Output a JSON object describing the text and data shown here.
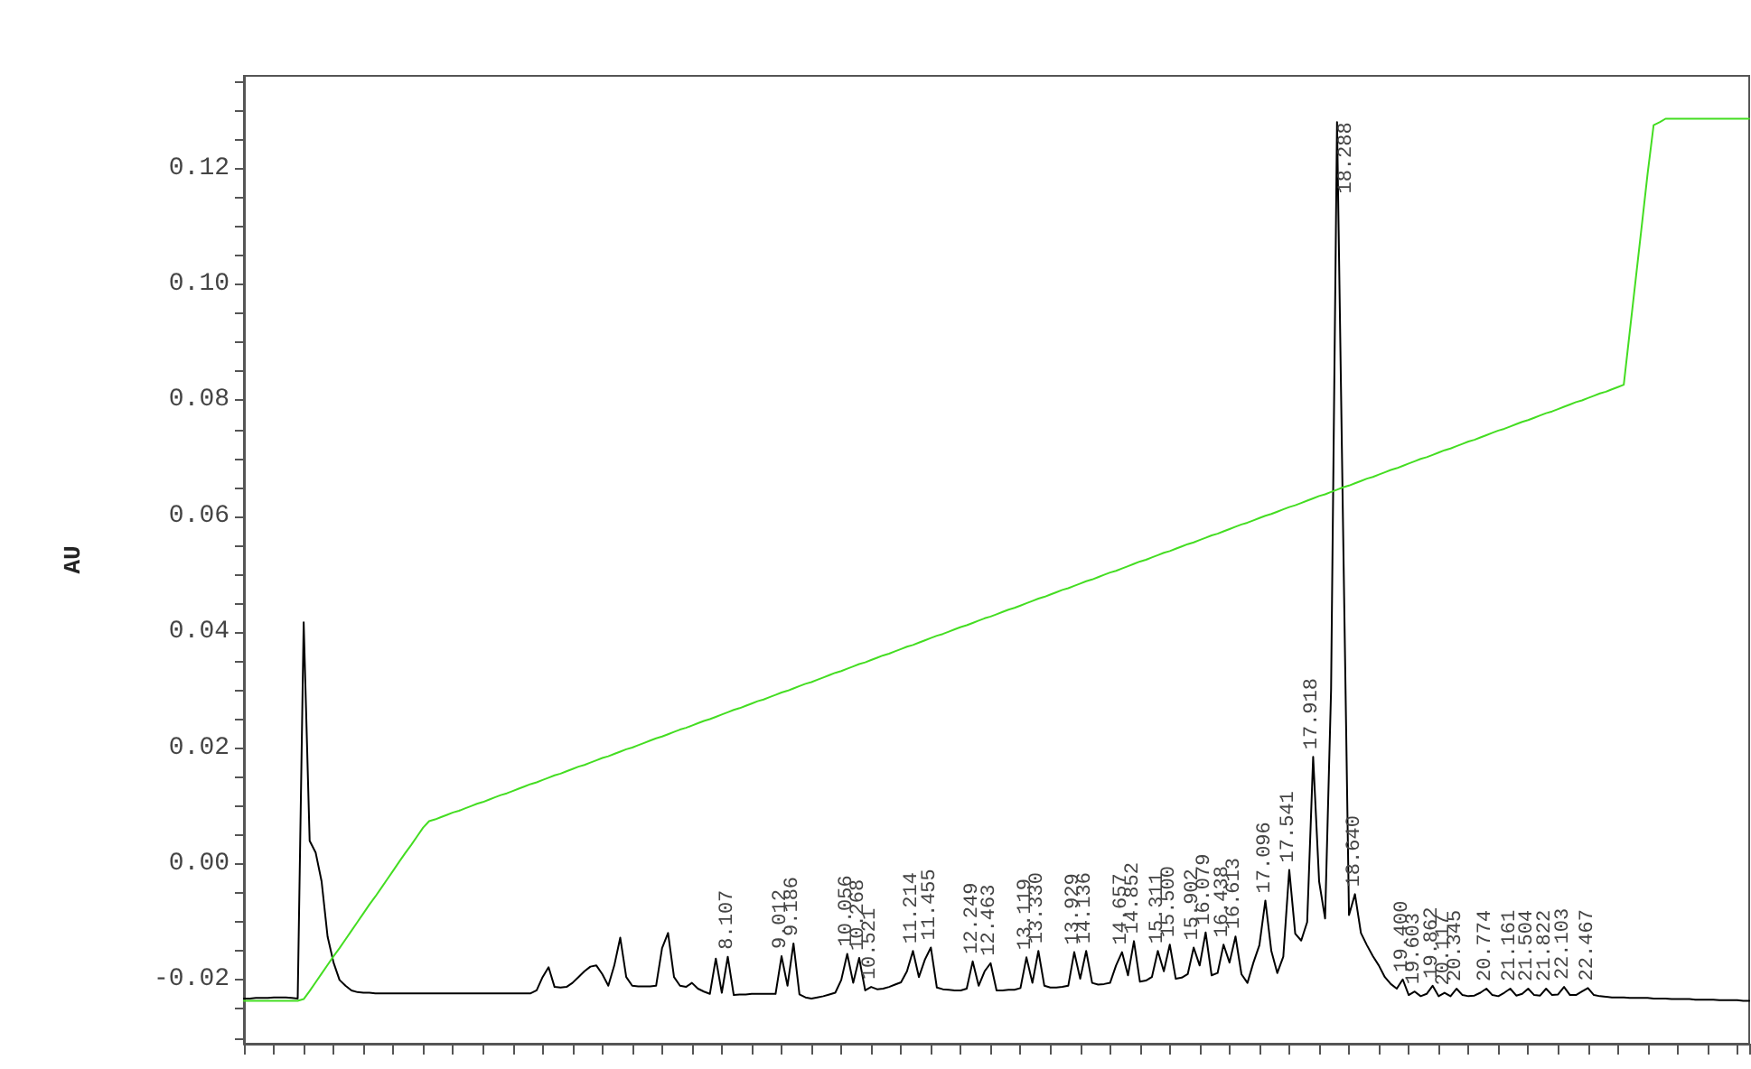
{
  "chart_data": {
    "type": "line",
    "ylabel": "AU",
    "categories": [
      null,
      null,
      null,
      null,
      null,
      null,
      null,
      null,
      null,
      null,
      null,
      null,
      null,
      null,
      null,
      null,
      null,
      null,
      null,
      null,
      null,
      null,
      null,
      null,
      null,
      null,
      null,
      null,
      null,
      null,
      null,
      null,
      null,
      null,
      null,
      null,
      null,
      null,
      null,
      null,
      null,
      null,
      null,
      null,
      null,
      null,
      null,
      null,
      null,
      null,
      null,
      null,
      null,
      null,
      null,
      null,
      null,
      null,
      null,
      null,
      null,
      null,
      null,
      null,
      null,
      null,
      null,
      null,
      null,
      null,
      null,
      null,
      null,
      null,
      null,
      null,
      null,
      null,
      null,
      null,
      null,
      null,
      null,
      null,
      null,
      null,
      null,
      null,
      null,
      null,
      null,
      null,
      null,
      null,
      null,
      null,
      null,
      null,
      null,
      null,
      null,
      null,
      null,
      null,
      null,
      null,
      null,
      null,
      null,
      null,
      null,
      null,
      null,
      null,
      null,
      null,
      null,
      null,
      null,
      null,
      null,
      null,
      null,
      null,
      null,
      null,
      null,
      null,
      null,
      null,
      null,
      null,
      null,
      null,
      null,
      null,
      null,
      null,
      null,
      null,
      null,
      null,
      null,
      null,
      null,
      null,
      null,
      null,
      null,
      null,
      null,
      null,
      null,
      null,
      null,
      null,
      null,
      null,
      null,
      null,
      null,
      null,
      null,
      null,
      null,
      null,
      null,
      null,
      null,
      null,
      null,
      null,
      null,
      null,
      null,
      null,
      null,
      null,
      null,
      null,
      null,
      null,
      null,
      null,
      null,
      null,
      null,
      null,
      null,
      null,
      null,
      null,
      null,
      null,
      null,
      null,
      null,
      null,
      null,
      null,
      null,
      null,
      null,
      null,
      null,
      null,
      null,
      null,
      null,
      null,
      null,
      null,
      null,
      null,
      null,
      null,
      null,
      null,
      null,
      null,
      null,
      null,
      null,
      null,
      null,
      null,
      null,
      null,
      null,
      null,
      null,
      null,
      null,
      null,
      null,
      null,
      null,
      null,
      null,
      null,
      null,
      null,
      null,
      null,
      null,
      null,
      null,
      null,
      null,
      null,
      null,
      null,
      null
    ],
    "ylim": [
      -0.031,
      0.136
    ],
    "yticks": [
      {
        "value": -0.03,
        "label": null
      },
      {
        "value": -0.025,
        "label": null
      },
      -0.02,
      {
        "value": -0.015,
        "label": null
      },
      {
        "value": -0.01,
        "label": null
      },
      {
        "value": -0.005,
        "label": null
      },
      {
        "value": 0,
        "label": "0.00"
      },
      {
        "value": 0.005,
        "label": null
      },
      {
        "value": 0.01,
        "label": null
      },
      {
        "value": 0.015,
        "label": null
      },
      0.02,
      {
        "value": 0.025,
        "label": null
      },
      {
        "value": 0.03,
        "label": null
      },
      {
        "value": 0.035,
        "label": null
      },
      0.04,
      {
        "value": 0.045,
        "label": null
      },
      {
        "value": 0.05,
        "label": null
      },
      {
        "value": 0.055,
        "label": null
      },
      0.06,
      {
        "value": 0.065,
        "label": null
      },
      {
        "value": 0.07,
        "label": null
      },
      {
        "value": 0.075,
        "label": null
      },
      0.08,
      {
        "value": 0.085,
        "label": null
      },
      {
        "value": 0.09,
        "label": null
      },
      {
        "value": 0.095,
        "label": null
      },
      {
        "value": 0.1,
        "label": "0.10"
      },
      {
        "value": 0.105,
        "label": null
      },
      {
        "value": 0.11,
        "label": null
      },
      {
        "value": 0.115,
        "label": null
      },
      0.12,
      {
        "value": 0.125,
        "label": null
      },
      {
        "value": 0.13,
        "label": null
      },
      {
        "value": 0.135,
        "label": null
      }
    ],
    "tick_labels": "y",
    "grid": false,
    "marker": "none",
    "line_style": "solid",
    "annotations": [
      {
        "text": "8.107",
        "y": -0.016
      },
      {
        "text": "9.012",
        "y": -0.0159
      },
      {
        "text": "9.186",
        "y": -0.0137
      },
      {
        "text": "10.056",
        "y": -0.0155
      },
      {
        "text": "10.268",
        "y": -0.0162
      },
      {
        "text": "10.521",
        "y": -0.0212
      },
      {
        "text": "11.214",
        "y": -0.015
      },
      {
        "text": "11.455",
        "y": -0.0144
      },
      {
        "text": "12.249",
        "y": -0.0168
      },
      {
        "text": "12.463",
        "y": -0.0171
      },
      {
        "text": "13.119",
        "y": -0.0161
      },
      {
        "text": "13.330",
        "y": -0.015
      },
      {
        "text": "13.929",
        "y": -0.0152
      },
      {
        "text": "14.136",
        "y": -0.015
      },
      {
        "text": "14.657",
        "y": -0.0152
      },
      {
        "text": "14.852",
        "y": -0.0133
      },
      {
        "text": "15.311",
        "y": -0.015
      },
      {
        "text": "15.500",
        "y": -0.0139
      },
      {
        "text": "15.902",
        "y": -0.0144
      },
      {
        "text": "16.079",
        "y": -0.0118
      },
      {
        "text": "16.438",
        "y": -0.0139
      },
      {
        "text": "16.613",
        "y": -0.0125
      },
      {
        "text": "17.096",
        "y": -0.0063
      },
      {
        "text": "17.541",
        "y": -0.001
      },
      {
        "text": "17.918",
        "y": 0.0185
      },
      {
        "text": "18.288",
        "y": 0.128
      },
      {
        "text": "18.640",
        "y": -0.0052
      },
      {
        "text": "19.400",
        "y": -0.0199
      },
      {
        "text": "19.603",
        "y": -0.022
      },
      {
        "text": "19.862",
        "y": -0.021
      },
      {
        "text": "20.117",
        "y": -0.0222
      },
      {
        "text": "20.345",
        "y": -0.0215
      },
      {
        "text": "20.774",
        "y": -0.0215
      },
      {
        "text": "21.161",
        "y": -0.0215
      },
      {
        "text": "21.504",
        "y": -0.0215
      },
      {
        "text": "21.822",
        "y": -0.0215
      },
      {
        "text": "22.103",
        "y": -0.0212
      },
      {
        "text": "22.467",
        "y": -0.0214
      }
    ],
    "series": [
      {
        "color": "#000000",
        "values": [
          -0.0232,
          -0.0232,
          -0.0231,
          -0.0231,
          -0.0231,
          -0.023,
          -0.023,
          -0.023,
          -0.0231,
          -0.0232,
          0.0417,
          0.004,
          0.002,
          -0.003,
          -0.0125,
          -0.017,
          -0.02,
          -0.021,
          -0.0218,
          -0.0221,
          -0.0222,
          -0.0222,
          -0.0223,
          -0.0223,
          -0.0223,
          -0.0223,
          -0.0223,
          -0.0223,
          -0.0223,
          -0.0223,
          -0.0223,
          -0.0223,
          -0.0223,
          -0.0223,
          -0.0223,
          -0.0223,
          -0.0223,
          -0.0223,
          -0.0223,
          -0.0223,
          -0.0223,
          -0.0223,
          -0.0223,
          -0.0223,
          -0.0223,
          -0.0223,
          -0.0223,
          -0.0223,
          -0.0223,
          -0.0218,
          -0.0195,
          -0.0178,
          -0.0212,
          -0.0213,
          -0.0212,
          -0.0205,
          -0.0195,
          -0.0185,
          -0.0177,
          -0.0175,
          -0.019,
          -0.021,
          -0.0175,
          -0.0127,
          -0.0195,
          -0.021,
          -0.0211,
          -0.0211,
          -0.0211,
          -0.021,
          -0.0145,
          -0.0119,
          -0.0195,
          -0.021,
          -0.0212,
          -0.0205,
          -0.0215,
          -0.022,
          -0.0224,
          -0.0163,
          -0.0222,
          -0.016,
          -0.0226,
          -0.0225,
          -0.0225,
          -0.0224,
          -0.0224,
          -0.0224,
          -0.0224,
          -0.0224,
          -0.0159,
          -0.021,
          -0.0137,
          -0.0225,
          -0.023,
          -0.0232,
          -0.023,
          -0.0228,
          -0.0225,
          -0.0222,
          -0.02,
          -0.0155,
          -0.0205,
          -0.0162,
          -0.0218,
          -0.0212,
          -0.0216,
          -0.0215,
          -0.0212,
          -0.0208,
          -0.0204,
          -0.0185,
          -0.015,
          -0.0195,
          -0.0165,
          -0.0144,
          -0.0213,
          -0.0216,
          -0.0217,
          -0.0218,
          -0.0218,
          -0.0215,
          -0.0168,
          -0.021,
          -0.0185,
          -0.0171,
          -0.0218,
          -0.0218,
          -0.0217,
          -0.0217,
          -0.0214,
          -0.0161,
          -0.0205,
          -0.015,
          -0.021,
          -0.0213,
          -0.0213,
          -0.0212,
          -0.021,
          -0.0152,
          -0.0198,
          -0.015,
          -0.0205,
          -0.0208,
          -0.0207,
          -0.0205,
          -0.0175,
          -0.0152,
          -0.0192,
          -0.0133,
          -0.0203,
          -0.0201,
          -0.0195,
          -0.015,
          -0.0185,
          -0.0139,
          -0.0198,
          -0.0196,
          -0.019,
          -0.0144,
          -0.0175,
          -0.0118,
          -0.0192,
          -0.0188,
          -0.0139,
          -0.017,
          -0.0125,
          -0.019,
          -0.0205,
          -0.017,
          -0.014,
          -0.0063,
          -0.015,
          -0.0188,
          -0.016,
          -0.001,
          -0.012,
          -0.0132,
          -0.01,
          0.0185,
          -0.003,
          -0.0094,
          0.03,
          0.128,
          0.0586,
          -0.0088,
          -0.0052,
          -0.0119,
          -0.014,
          -0.0159,
          -0.0175,
          -0.0195,
          -0.0207,
          -0.0215,
          -0.0199,
          -0.0226,
          -0.022,
          -0.0228,
          -0.0224,
          -0.021,
          -0.0228,
          -0.0222,
          -0.0228,
          -0.0215,
          -0.0226,
          -0.0228,
          -0.0227,
          -0.0222,
          -0.0215,
          -0.0226,
          -0.0228,
          -0.0222,
          -0.0215,
          -0.0227,
          -0.0224,
          -0.0215,
          -0.0226,
          -0.0227,
          -0.0215,
          -0.0226,
          -0.0225,
          -0.0212,
          -0.0226,
          -0.0226,
          -0.022,
          -0.0214,
          -0.0226,
          -0.0228,
          -0.0229,
          -0.023,
          -0.023,
          -0.023,
          -0.0231,
          -0.0231,
          -0.0231,
          -0.0231,
          -0.0232,
          -0.0232,
          -0.0232,
          -0.0233,
          -0.0233,
          -0.0233,
          -0.0233,
          -0.0234,
          -0.0234,
          -0.0234,
          -0.0234,
          -0.0235,
          -0.0235,
          -0.0235,
          -0.0235,
          -0.0236,
          -0.0236
        ]
      },
      {
        "color": "#44dd22",
        "values": [
          -0.0236,
          -0.0236,
          -0.0236,
          -0.0236,
          -0.0236,
          -0.0236,
          -0.0236,
          -0.0236,
          -0.0236,
          -0.0236,
          -0.0233,
          -0.0219,
          -0.0204,
          -0.0189,
          -0.0174,
          -0.0159,
          -0.0145,
          -0.013,
          -0.0115,
          -0.01,
          -0.0085,
          -0.007,
          -0.0056,
          -0.0041,
          -0.0026,
          -0.0011,
          0.0004,
          0.0019,
          0.0033,
          0.0048,
          0.0063,
          0.0074,
          0.0077,
          0.0081,
          0.0085,
          0.0089,
          0.0092,
          0.0096,
          0.01,
          0.0104,
          0.0107,
          0.0111,
          0.0115,
          0.0119,
          0.0122,
          0.0126,
          0.013,
          0.0134,
          0.0138,
          0.0141,
          0.0145,
          0.0149,
          0.0153,
          0.0156,
          0.016,
          0.0164,
          0.0168,
          0.0171,
          0.0175,
          0.0179,
          0.0183,
          0.0186,
          0.019,
          0.0194,
          0.0198,
          0.0201,
          0.0205,
          0.0209,
          0.0213,
          0.0217,
          0.022,
          0.0224,
          0.0228,
          0.0232,
          0.0235,
          0.0239,
          0.0243,
          0.0247,
          0.025,
          0.0254,
          0.0258,
          0.0262,
          0.0266,
          0.0269,
          0.0273,
          0.0277,
          0.0281,
          0.0284,
          0.0288,
          0.0292,
          0.0296,
          0.0299,
          0.0303,
          0.0307,
          0.0311,
          0.0314,
          0.0318,
          0.0322,
          0.0326,
          0.033,
          0.0333,
          0.0337,
          0.0341,
          0.0345,
          0.0348,
          0.0352,
          0.0356,
          0.036,
          0.0363,
          0.0367,
          0.0371,
          0.0375,
          0.0378,
          0.0382,
          0.0386,
          0.039,
          0.0394,
          0.0397,
          0.0401,
          0.0405,
          0.0409,
          0.0412,
          0.0416,
          0.042,
          0.0424,
          0.0427,
          0.0431,
          0.0435,
          0.0439,
          0.0442,
          0.0446,
          0.045,
          0.0454,
          0.0458,
          0.0461,
          0.0465,
          0.0469,
          0.0473,
          0.0476,
          0.048,
          0.0484,
          0.0488,
          0.0491,
          0.0495,
          0.0499,
          0.0503,
          0.0506,
          0.051,
          0.0514,
          0.0518,
          0.0522,
          0.0525,
          0.0529,
          0.0533,
          0.0537,
          0.054,
          0.0544,
          0.0548,
          0.0552,
          0.0555,
          0.0559,
          0.0563,
          0.0567,
          0.057,
          0.0574,
          0.0578,
          0.0582,
          0.0586,
          0.0589,
          0.0593,
          0.0597,
          0.0601,
          0.0604,
          0.0608,
          0.0612,
          0.0616,
          0.0619,
          0.0623,
          0.0627,
          0.0631,
          0.0635,
          0.0638,
          0.0642,
          0.0646,
          0.065,
          0.0653,
          0.0657,
          0.0661,
          0.0665,
          0.0668,
          0.0672,
          0.0676,
          0.068,
          0.0683,
          0.0687,
          0.0691,
          0.0695,
          0.0699,
          0.0702,
          0.0706,
          0.071,
          0.0714,
          0.0717,
          0.0721,
          0.0725,
          0.0729,
          0.0732,
          0.0736,
          0.074,
          0.0744,
          0.0748,
          0.0751,
          0.0755,
          0.0759,
          0.0763,
          0.0766,
          0.077,
          0.0774,
          0.0778,
          0.0781,
          0.0785,
          0.0789,
          0.0793,
          0.0797,
          0.08,
          0.0804,
          0.0808,
          0.0812,
          0.0815,
          0.0819,
          0.0823,
          0.0827,
          0.0918,
          0.1009,
          0.11,
          0.1192,
          0.1275,
          0.128,
          0.1286,
          0.1286,
          0.1286,
          0.1286,
          0.1286,
          0.1286,
          0.1286,
          0.1286,
          0.1286,
          0.1286,
          0.1286,
          0.1286,
          0.1286,
          0.1286,
          0.1286
        ]
      }
    ]
  }
}
